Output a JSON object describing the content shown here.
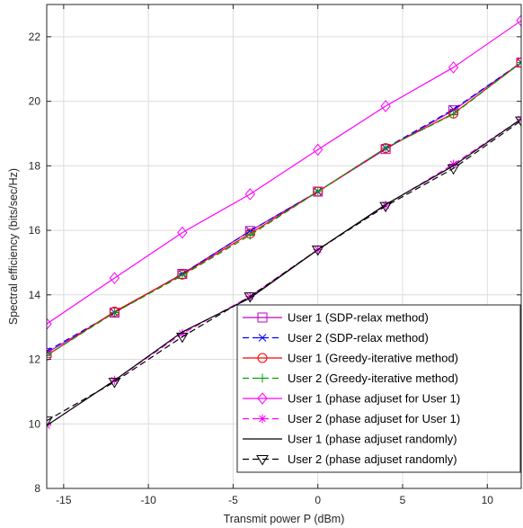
{
  "chart_data": {
    "type": "line",
    "xlabel": "Transmit power P (dBm)",
    "ylabel": "Spectral efficiency (bits/sec/Hz)",
    "xlim": [
      -16,
      12
    ],
    "ylim": [
      8,
      23
    ],
    "xticks": [
      -15,
      -10,
      -5,
      0,
      5,
      10
    ],
    "yticks": [
      8,
      10,
      12,
      14,
      16,
      18,
      20,
      22
    ],
    "grid": true,
    "legend_position": "bottom-right",
    "series": [
      {
        "name": "User 1 (SDP-relax method)",
        "color": "#bf00bf",
        "dash": "none",
        "marker": "square",
        "x": [
          -16,
          -12,
          -8,
          -4,
          0,
          4,
          8,
          12
        ],
        "y": [
          12.2,
          13.45,
          14.65,
          15.98,
          17.2,
          18.52,
          19.72,
          21.2
        ]
      },
      {
        "name": "User 2 (SDP-relax method)",
        "color": "#0000ff",
        "dash": "dashed",
        "marker": "x-star",
        "x": [
          -16,
          -12,
          -8,
          -4,
          0,
          4,
          8,
          12
        ],
        "y": [
          12.25,
          13.45,
          14.65,
          15.98,
          17.2,
          18.55,
          19.75,
          21.2
        ]
      },
      {
        "name": "User 1 (Greedy-iterative method)",
        "color": "#ff0000",
        "dash": "none",
        "marker": "circle",
        "x": [
          -16,
          -12,
          -8,
          -4,
          0,
          4,
          8,
          12
        ],
        "y": [
          12.12,
          13.48,
          14.63,
          15.9,
          17.2,
          18.55,
          19.62,
          21.2
        ]
      },
      {
        "name": "User 2 (Greedy-iterative method)",
        "color": "#00a000",
        "dash": "dashed",
        "marker": "plus",
        "x": [
          -16,
          -12,
          -8,
          -4,
          0,
          4,
          8,
          12
        ],
        "y": [
          12.12,
          13.45,
          14.6,
          15.85,
          17.2,
          18.55,
          19.6,
          21.2
        ]
      },
      {
        "name": "User 1 (phase adjuset for User 1)",
        "color": "#ff00ff",
        "dash": "none",
        "marker": "diamond",
        "x": [
          -16,
          -12,
          -8,
          -4,
          0,
          4,
          8,
          12
        ],
        "y": [
          13.1,
          14.52,
          15.93,
          17.12,
          18.5,
          19.85,
          21.05,
          22.5
        ]
      },
      {
        "name": "User 2 (phase adjuset for User 1)",
        "color": "#ff00ff",
        "dash": "dashed",
        "marker": "asterisk",
        "x": [
          -16,
          -12,
          -8,
          -4,
          0,
          4,
          8,
          12
        ],
        "y": [
          9.95,
          11.35,
          12.8,
          13.95,
          15.4,
          16.78,
          18.05,
          19.45
        ]
      },
      {
        "name": "User 1 (phase adjuset randomly)",
        "color": "#000000",
        "dash": "none",
        "marker": "none",
        "x": [
          -16,
          -12,
          -8,
          -4,
          0,
          4,
          8,
          12
        ],
        "y": [
          9.95,
          11.35,
          12.85,
          13.9,
          15.4,
          16.8,
          18.0,
          19.45
        ]
      },
      {
        "name": "User 2 (phase adjuset randomly)",
        "color": "#000000",
        "dash": "dashed",
        "marker": "triangle-down",
        "x": [
          -16,
          -12,
          -8,
          -4,
          0,
          4,
          8,
          12
        ],
        "y": [
          10.1,
          11.3,
          12.7,
          13.95,
          15.4,
          16.75,
          17.92,
          19.4
        ]
      }
    ]
  }
}
